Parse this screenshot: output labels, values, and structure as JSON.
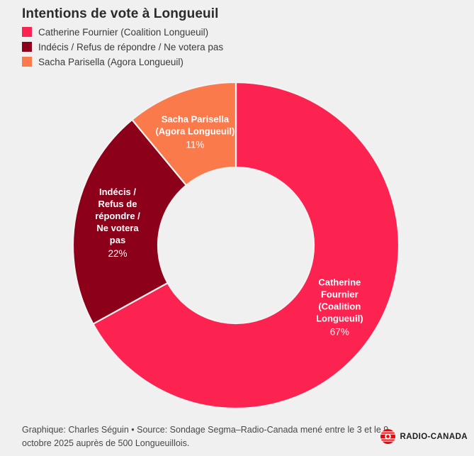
{
  "chart_data": {
    "type": "pie",
    "donut": true,
    "title": "Intentions de vote à Longueuil",
    "direction": "clockwise",
    "start_angle_deg": 0,
    "legend_position": "top-left",
    "segments": [
      {
        "label": "Catherine Fournier (Coalition Longueuil)",
        "value": 67,
        "pct_label": "67%",
        "color": "#fc2350"
      },
      {
        "label": "Indécis / Refus de répondre / Ne votera pas",
        "value": 22,
        "pct_label": "22%",
        "color": "#8d0019"
      },
      {
        "label": "Sacha Parisella (Agora Longueuil)",
        "value": 11,
        "pct_label": "11%",
        "color": "#fa7a4c"
      }
    ]
  },
  "footer": {
    "credit": "Graphique: Charles Séguin • Source: Sondage Segma–Radio-Canada mené entre le 3 et le 9 octobre 2025 auprès de 500 Longueuillois.",
    "logo_text": "RADIO-CANADA"
  },
  "colors": {
    "background": "#f0f0f1",
    "slice_gap": "#f3f3f4",
    "logo_red": "#e9070b"
  }
}
